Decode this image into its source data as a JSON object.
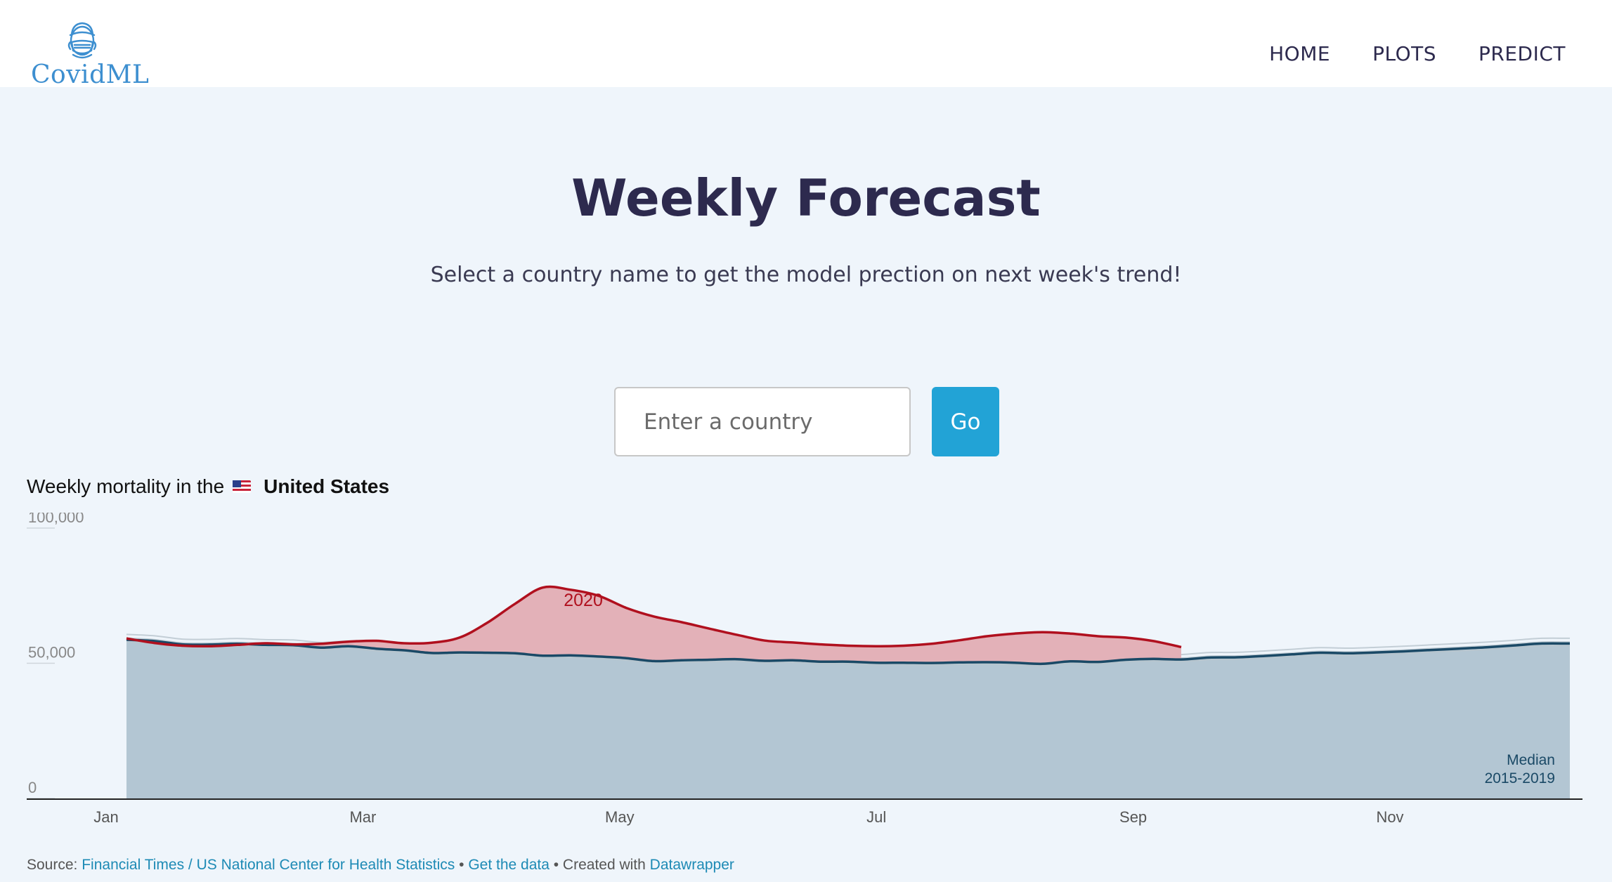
{
  "navbar": {
    "logo_text": "CovidML",
    "links": [
      {
        "label": "HOME"
      },
      {
        "label": "PLOTS"
      },
      {
        "label": "PREDICT"
      }
    ]
  },
  "page": {
    "title": "Weekly Forecast",
    "subtitle": "Select a country name to get the model prection on next week's trend!"
  },
  "search": {
    "placeholder": "Enter a country",
    "button_label": "Go"
  },
  "chart_heading": {
    "prefix": "Weekly mortality in the",
    "country": "United States"
  },
  "chart_data": {
    "type": "area",
    "x_unit": "week of year",
    "xlim": [
      1,
      53
    ],
    "ylim": [
      0,
      100000
    ],
    "y_ticks": [
      {
        "value": 0,
        "label": "0"
      },
      {
        "value": 50000,
        "label": "50,000"
      },
      {
        "value": 100000,
        "label": "100,000"
      }
    ],
    "x_ticks": [
      {
        "week": 0,
        "label": "Jan"
      },
      {
        "week": 9,
        "label": "Mar"
      },
      {
        "week": 18,
        "label": "May"
      },
      {
        "week": 27,
        "label": "Jul"
      },
      {
        "week": 36,
        "label": "Sep"
      },
      {
        "week": 45,
        "label": "Nov"
      }
    ],
    "series": [
      {
        "name": "2020",
        "color": "#b0101e",
        "label_at_week": 16.5,
        "points": [
          [
            1,
            59200
          ],
          [
            2,
            57500
          ],
          [
            3,
            56500
          ],
          [
            4,
            56300
          ],
          [
            5,
            56800
          ],
          [
            6,
            57400
          ],
          [
            7,
            57000
          ],
          [
            8,
            57200
          ],
          [
            9,
            58000
          ],
          [
            10,
            58300
          ],
          [
            11,
            57400
          ],
          [
            12,
            57600
          ],
          [
            13,
            59500
          ],
          [
            14,
            65000
          ],
          [
            15,
            72000
          ],
          [
            16,
            78000
          ],
          [
            17,
            77200
          ],
          [
            18,
            75000
          ],
          [
            19,
            70500
          ],
          [
            20,
            67300
          ],
          [
            21,
            65200
          ],
          [
            22,
            62800
          ],
          [
            23,
            60500
          ],
          [
            24,
            58400
          ],
          [
            25,
            57700
          ],
          [
            26,
            57000
          ],
          [
            27,
            56500
          ],
          [
            28,
            56300
          ],
          [
            29,
            56500
          ],
          [
            30,
            57200
          ],
          [
            31,
            58500
          ],
          [
            32,
            60000
          ],
          [
            33,
            61000
          ],
          [
            34,
            61500
          ],
          [
            35,
            61000
          ],
          [
            36,
            60000
          ],
          [
            37,
            59500
          ],
          [
            38,
            58200
          ],
          [
            39,
            56000
          ]
        ]
      },
      {
        "name": "Median 2015-2019",
        "color": "#1a4966",
        "points": [
          [
            1,
            58700
          ],
          [
            2,
            58200
          ],
          [
            3,
            57000
          ],
          [
            4,
            56900
          ],
          [
            5,
            57200
          ],
          [
            6,
            56800
          ],
          [
            7,
            56700
          ],
          [
            8,
            55800
          ],
          [
            9,
            56300
          ],
          [
            10,
            55400
          ],
          [
            11,
            54800
          ],
          [
            12,
            53800
          ],
          [
            13,
            54000
          ],
          [
            14,
            53900
          ],
          [
            15,
            53700
          ],
          [
            16,
            52800
          ],
          [
            17,
            52900
          ],
          [
            18,
            52500
          ],
          [
            19,
            51900
          ],
          [
            20,
            50800
          ],
          [
            21,
            51100
          ],
          [
            22,
            51300
          ],
          [
            23,
            51500
          ],
          [
            24,
            50900
          ],
          [
            25,
            51100
          ],
          [
            26,
            50600
          ],
          [
            27,
            50600
          ],
          [
            28,
            50200
          ],
          [
            29,
            50200
          ],
          [
            30,
            50100
          ],
          [
            31,
            50300
          ],
          [
            32,
            50400
          ],
          [
            33,
            50200
          ],
          [
            34,
            49800
          ],
          [
            35,
            50700
          ],
          [
            36,
            50500
          ],
          [
            37,
            51300
          ],
          [
            38,
            51600
          ],
          [
            39,
            51400
          ],
          [
            40,
            52100
          ],
          [
            41,
            52200
          ],
          [
            42,
            52700
          ],
          [
            43,
            53300
          ],
          [
            44,
            53900
          ],
          [
            45,
            53700
          ],
          [
            46,
            54000
          ],
          [
            47,
            54400
          ],
          [
            48,
            54900
          ],
          [
            49,
            55400
          ],
          [
            50,
            55900
          ],
          [
            51,
            56600
          ],
          [
            52,
            57300
          ],
          [
            53,
            57300
          ]
        ]
      }
    ],
    "median_label": [
      "Median",
      "2015-2019"
    ],
    "background_series_color": "#b8c4cd"
  },
  "source": {
    "prefix": "Source:",
    "source_link": "Financial Times / US National Center for Health Statistics",
    "separator1": "•",
    "get_data_link": "Get the data",
    "separator2": "• Created with",
    "created_with_link": "Datawrapper"
  }
}
